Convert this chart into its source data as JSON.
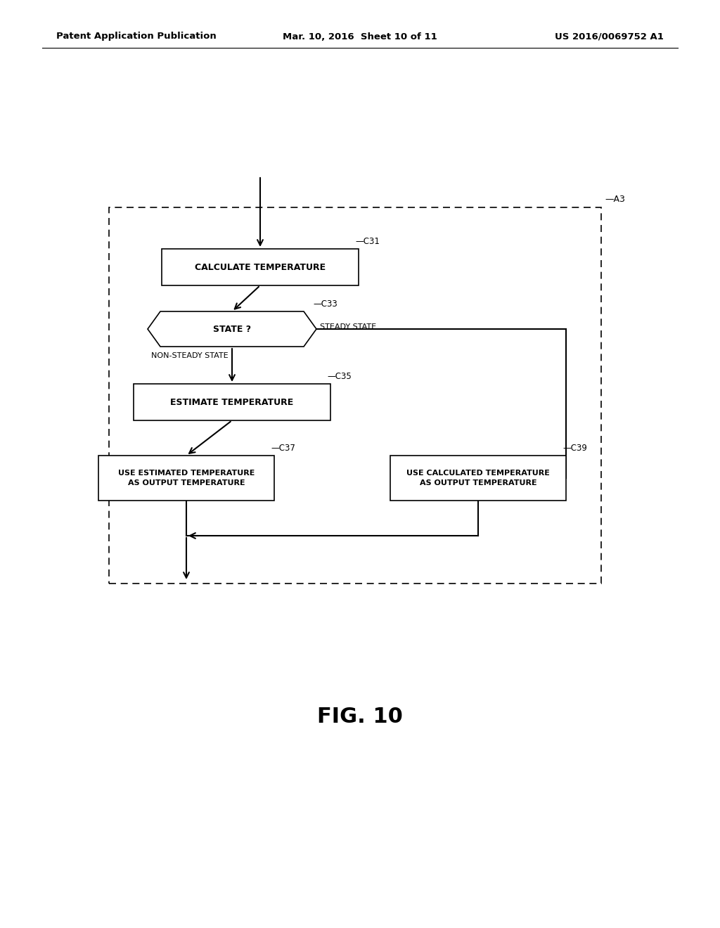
{
  "bg_color": "#ffffff",
  "header_left": "Patent Application Publication",
  "header_mid": "Mar. 10, 2016  Sheet 10 of 11",
  "header_right": "US 2016/0069752 A1",
  "fig_label": "FIG. 10",
  "outer_box_label": "A3",
  "line_color": "#000000",
  "text_color": "#000000"
}
